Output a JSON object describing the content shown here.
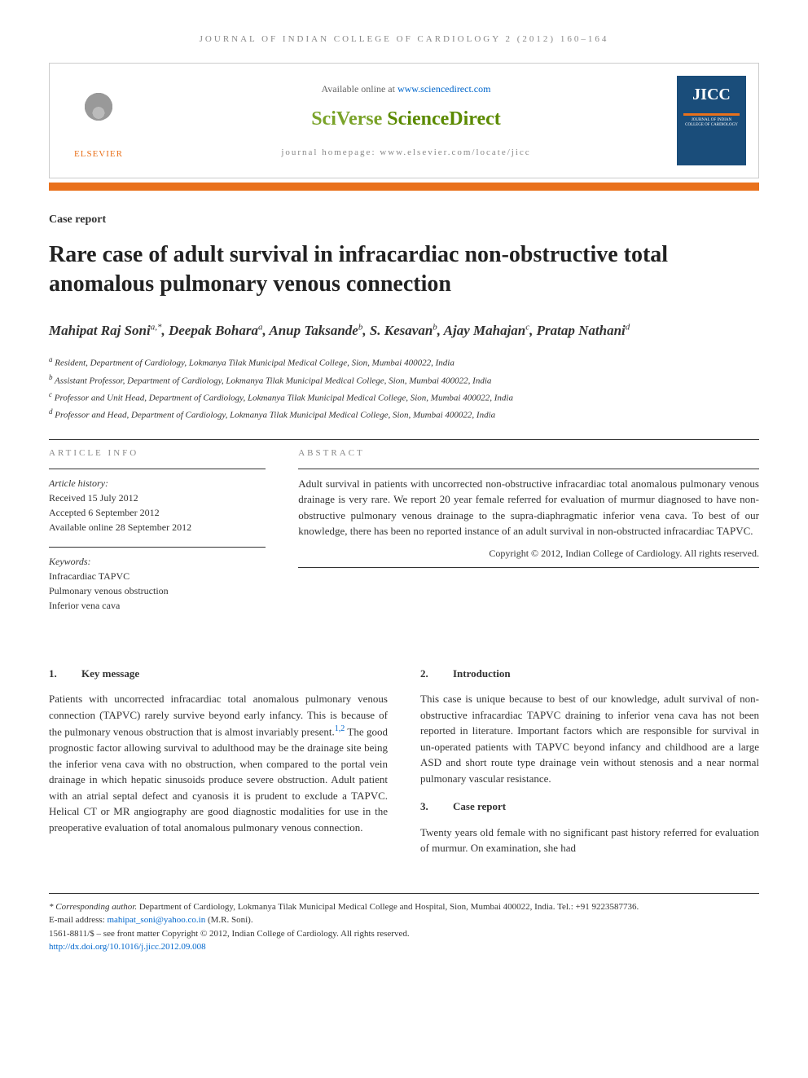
{
  "journal_header": "JOURNAL OF INDIAN COLLEGE OF CARDIOLOGY 2 (2012) 160–164",
  "top_box": {
    "elsevier": "ELSEVIER",
    "available_text": "Available online at ",
    "available_url": "www.sciencedirect.com",
    "brand_prefix": "SciVerse ",
    "brand_main": "ScienceDirect",
    "homepage": "journal homepage: www.elsevier.com/locate/jicc",
    "cover_title": "JICC",
    "cover_sub": "JOURNAL OF INDIAN COLLEGE OF CARDIOLOGY"
  },
  "article_type": "Case report",
  "title": "Rare case of adult survival in infracardiac non-obstructive total anomalous pulmonary venous connection",
  "authors_html": "Mahipat Raj Soni",
  "authors": [
    {
      "name": "Mahipat Raj Soni",
      "marks": "a,*"
    },
    {
      "name": "Deepak Bohara",
      "marks": "a"
    },
    {
      "name": "Anup Taksande",
      "marks": "b"
    },
    {
      "name": "S. Kesavan",
      "marks": "b"
    },
    {
      "name": "Ajay Mahajan",
      "marks": "c"
    },
    {
      "name": "Pratap Nathani",
      "marks": "d"
    }
  ],
  "affiliations": [
    {
      "mark": "a",
      "text": "Resident, Department of Cardiology, Lokmanya Tilak Municipal Medical College, Sion, Mumbai 400022, India"
    },
    {
      "mark": "b",
      "text": "Assistant Professor, Department of Cardiology, Lokmanya Tilak Municipal Medical College, Sion, Mumbai 400022, India"
    },
    {
      "mark": "c",
      "text": "Professor and Unit Head, Department of Cardiology, Lokmanya Tilak Municipal Medical College, Sion, Mumbai 400022, India"
    },
    {
      "mark": "d",
      "text": "Professor and Head, Department of Cardiology, Lokmanya Tilak Municipal Medical College, Sion, Mumbai 400022, India"
    }
  ],
  "info": {
    "heading": "ARTICLE INFO",
    "history_label": "Article history:",
    "received": "Received 15 July 2012",
    "accepted": "Accepted 6 September 2012",
    "online": "Available online 28 September 2012",
    "keywords_label": "Keywords:",
    "keywords": [
      "Infracardiac TAPVC",
      "Pulmonary venous obstruction",
      "Inferior vena cava"
    ]
  },
  "abstract": {
    "heading": "ABSTRACT",
    "text": "Adult survival in patients with uncorrected non-obstructive infracardiac total anomalous pulmonary venous drainage is very rare. We report 20 year female referred for evaluation of murmur diagnosed to have non-obstructive pulmonary venous drainage to the supra-diaphragmatic inferior vena cava. To best of our knowledge, there has been no reported instance of an adult survival in non-obstructed infracardiac TAPVC.",
    "copyright": "Copyright © 2012, Indian College of Cardiology. All rights reserved."
  },
  "sections": {
    "s1": {
      "num": "1.",
      "title": "Key message",
      "body": "Patients with uncorrected infracardiac total anomalous pulmonary venous connection (TAPVC) rarely survive beyond early infancy. This is because of the pulmonary venous obstruction that is almost invariably present.1,2 The good prognostic factor allowing survival to adulthood may be the drainage site being the inferior vena cava with no obstruction, when compared to the portal vein drainage in which hepatic sinusoids produce severe obstruction. Adult patient with an atrial septal defect and cyanosis it is prudent to exclude a TAPVC. Helical CT or MR angiography are good diagnostic modalities for use in the preoperative evaluation of total anomalous pulmonary venous connection."
    },
    "s2": {
      "num": "2.",
      "title": "Introduction",
      "body": "This case is unique because to best of our knowledge, adult survival of non-obstructive infracardiac TAPVC draining to inferior vena cava has not been reported in literature. Important factors which are responsible for survival in un-operated patients with TAPVC beyond infancy and childhood are a large ASD and short route type drainage vein without stenosis and a near normal pulmonary vascular resistance."
    },
    "s3": {
      "num": "3.",
      "title": "Case report",
      "body": "Twenty years old female with no significant past history referred for evaluation of murmur. On examination, she had"
    }
  },
  "footnotes": {
    "corr_label": "* Corresponding author.",
    "corr_text": " Department of Cardiology, Lokmanya Tilak Municipal Medical College and Hospital, Sion, Mumbai 400022, India. Tel.: +91 9223587736.",
    "email_label": "E-mail address: ",
    "email": "mahipat_soni@yahoo.co.in",
    "email_suffix": " (M.R. Soni).",
    "issn_line": "1561-8811/$ – see front matter Copyright © 2012, Indian College of Cardiology. All rights reserved.",
    "doi": "http://dx.doi.org/10.1016/j.jicc.2012.09.008"
  },
  "colors": {
    "orange": "#e9711c",
    "link": "#0066cc",
    "green": "#5b8a00",
    "cover_blue": "#1a4d7a"
  }
}
